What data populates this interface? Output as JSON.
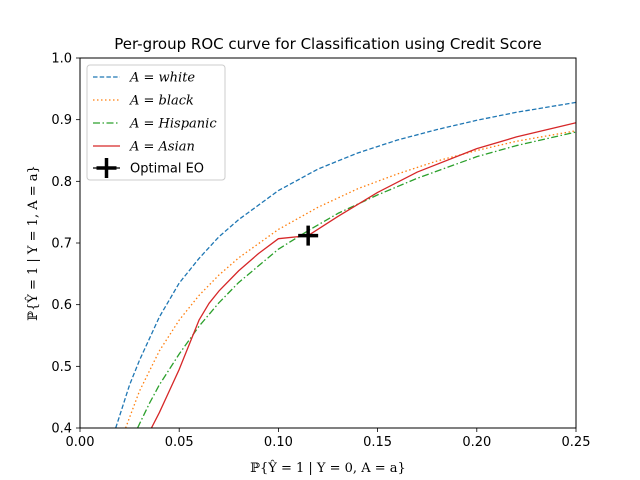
{
  "chart_data": {
    "type": "line",
    "title": "Per-group ROC curve for Classification using Credit Score",
    "xlabel": "ℙ{Ŷ = 1 | Y = 0, A = a}",
    "ylabel": "ℙ{Ŷ = 1 | Y = 1, A = a}",
    "xlim": [
      0.0,
      0.25
    ],
    "ylim": [
      0.4,
      1.0
    ],
    "xticks": [
      "0.00",
      "0.05",
      "0.10",
      "0.15",
      "0.20",
      "0.25"
    ],
    "yticks": [
      "0.4",
      "0.5",
      "0.6",
      "0.7",
      "0.8",
      "0.9",
      "1.0"
    ],
    "grid": false,
    "legend_position": "top-left",
    "series": [
      {
        "name": "A = white",
        "color": "#1f77b4",
        "linestyle": "dashed",
        "x": [
          0.018,
          0.02,
          0.025,
          0.03,
          0.04,
          0.05,
          0.06,
          0.07,
          0.08,
          0.1,
          0.12,
          0.14,
          0.16,
          0.18,
          0.2,
          0.22,
          0.25
        ],
        "y": [
          0.4,
          0.42,
          0.47,
          0.51,
          0.58,
          0.635,
          0.675,
          0.71,
          0.738,
          0.785,
          0.82,
          0.846,
          0.867,
          0.884,
          0.899,
          0.912,
          0.928
        ]
      },
      {
        "name": "A = black",
        "color": "#ff7f0e",
        "linestyle": "dotted",
        "x": [
          0.023,
          0.03,
          0.04,
          0.05,
          0.06,
          0.07,
          0.08,
          0.1,
          0.12,
          0.14,
          0.16,
          0.18,
          0.2,
          0.22,
          0.25
        ],
        "y": [
          0.4,
          0.46,
          0.525,
          0.575,
          0.615,
          0.648,
          0.676,
          0.722,
          0.758,
          0.788,
          0.812,
          0.833,
          0.85,
          0.865,
          0.882
        ]
      },
      {
        "name": "A = Hispanic",
        "color": "#2ca02c",
        "linestyle": "dashdot",
        "x": [
          0.029,
          0.035,
          0.04,
          0.05,
          0.06,
          0.07,
          0.08,
          0.1,
          0.115,
          0.13,
          0.15,
          0.17,
          0.2,
          0.22,
          0.25
        ],
        "y": [
          0.4,
          0.44,
          0.47,
          0.52,
          0.565,
          0.603,
          0.636,
          0.69,
          0.72,
          0.748,
          0.778,
          0.805,
          0.84,
          0.858,
          0.88
        ]
      },
      {
        "name": "A = Asian",
        "color": "#d62728",
        "linestyle": "solid",
        "x": [
          0.036,
          0.04,
          0.045,
          0.05,
          0.055,
          0.06,
          0.065,
          0.07,
          0.08,
          0.09,
          0.1,
          0.115,
          0.13,
          0.15,
          0.17,
          0.2,
          0.22,
          0.25
        ],
        "y": [
          0.4,
          0.425,
          0.46,
          0.495,
          0.535,
          0.575,
          0.602,
          0.622,
          0.655,
          0.683,
          0.707,
          0.712,
          0.743,
          0.782,
          0.815,
          0.853,
          0.872,
          0.895
        ]
      }
    ],
    "markers": [
      {
        "name": "Optimal EO",
        "x": 0.115,
        "y": 0.712,
        "marker": "plus",
        "color": "#000000"
      }
    ]
  }
}
